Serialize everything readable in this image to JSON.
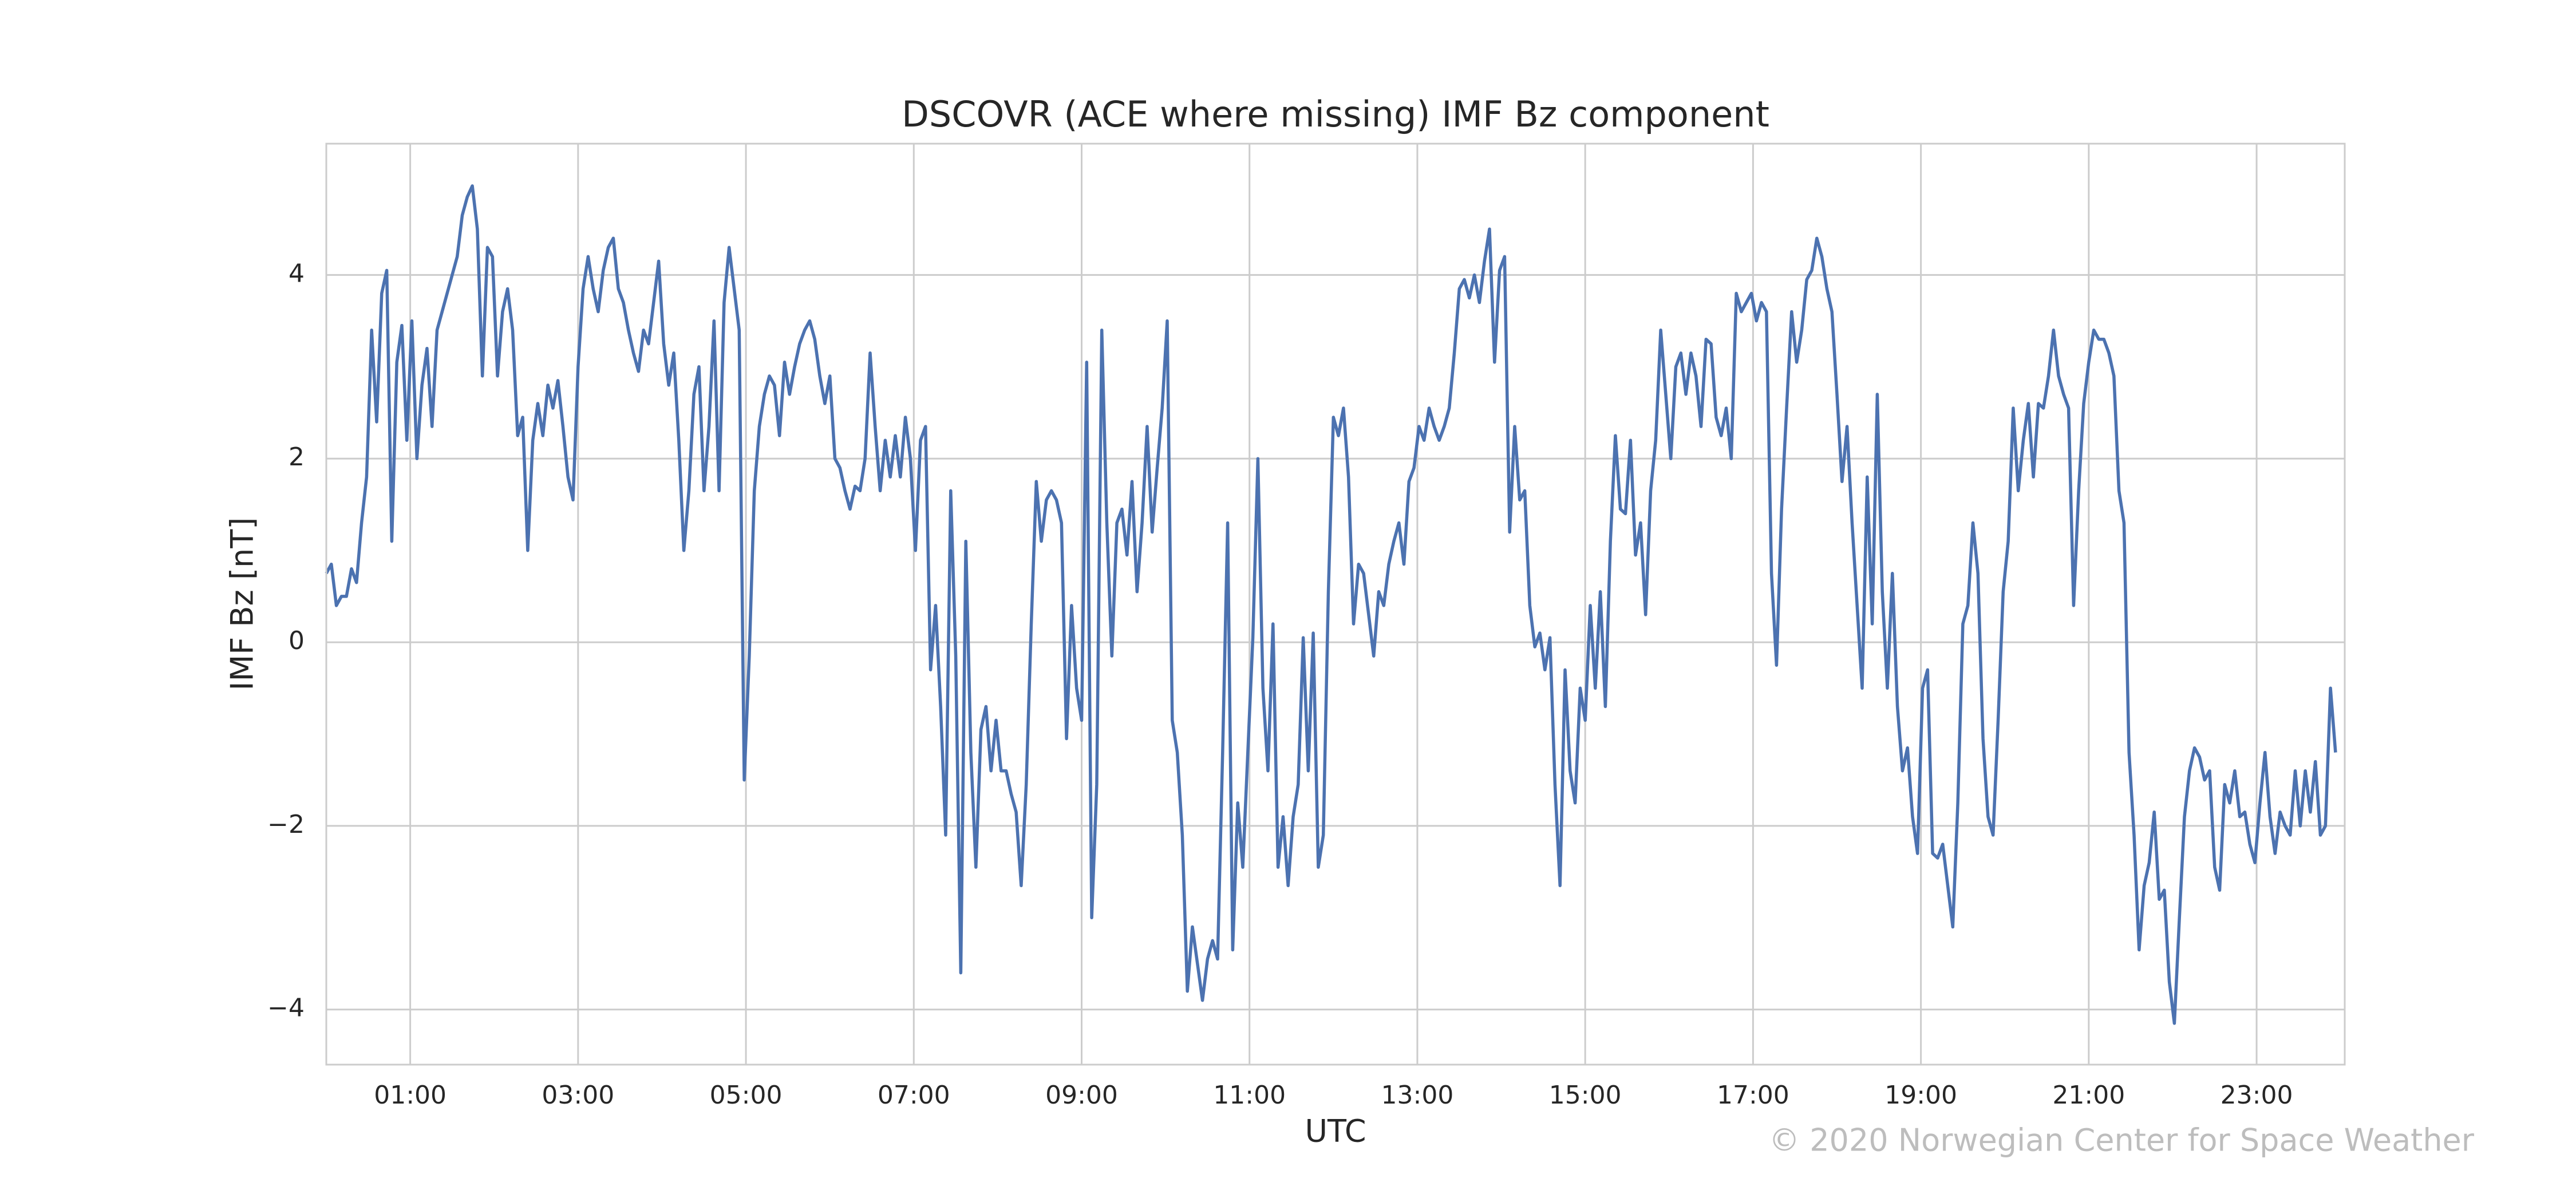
{
  "chart_data": {
    "type": "line",
    "title": "DSCOVR (ACE where missing) IMF Bz component",
    "xlabel": "UTC",
    "ylabel": "IMF Bz [nT]",
    "credit": "© 2020 Norwegian Center for Space Weather",
    "color": "#4c72b0",
    "grid": true,
    "xlim": [
      0,
      24.05
    ],
    "ylim": [
      -4.6,
      5.43
    ],
    "xticks": [
      {
        "value": 1,
        "label": "01:00"
      },
      {
        "value": 3,
        "label": "03:00"
      },
      {
        "value": 5,
        "label": "05:00"
      },
      {
        "value": 7,
        "label": "07:00"
      },
      {
        "value": 9,
        "label": "09:00"
      },
      {
        "value": 11,
        "label": "11:00"
      },
      {
        "value": 13,
        "label": "13:00"
      },
      {
        "value": 15,
        "label": "15:00"
      },
      {
        "value": 17,
        "label": "17:00"
      },
      {
        "value": 19,
        "label": "19:00"
      },
      {
        "value": 21,
        "label": "21:00"
      },
      {
        "value": 23,
        "label": "23:00"
      }
    ],
    "yticks": [
      {
        "value": -4,
        "label": "−4"
      },
      {
        "value": -2,
        "label": "−2"
      },
      0,
      2,
      4
    ],
    "x": [
      0,
      0.06,
      0.12,
      0.18,
      0.24,
      0.3,
      0.36,
      0.42,
      0.48,
      0.54,
      0.6,
      0.66,
      0.72,
      0.78,
      0.84,
      0.9,
      0.96,
      1.02,
      1.08,
      1.14,
      1.2,
      1.26,
      1.32,
      1.38,
      1.44,
      1.5,
      1.56,
      1.62,
      1.68,
      1.74,
      1.8,
      1.86,
      1.92,
      1.98,
      2.04,
      2.1,
      2.16,
      2.22,
      2.28,
      2.34,
      2.4,
      2.46,
      2.52,
      2.58,
      2.64,
      2.7,
      2.76,
      2.82,
      2.88,
      2.94,
      3.0,
      3.06,
      3.12,
      3.18,
      3.24,
      3.3,
      3.36,
      3.42,
      3.48,
      3.54,
      3.6,
      3.66,
      3.72,
      3.78,
      3.84,
      3.9,
      3.96,
      4.02,
      4.08,
      4.14,
      4.2,
      4.26,
      4.32,
      4.38,
      4.44,
      4.5,
      4.56,
      4.62,
      4.68,
      4.74,
      4.8,
      4.86,
      4.92,
      4.98,
      5.04,
      5.1,
      5.16,
      5.22,
      5.28,
      5.34,
      5.4,
      5.46,
      5.52,
      5.58,
      5.64,
      5.7,
      5.76,
      5.82,
      5.88,
      5.94,
      6.0,
      6.06,
      6.12,
      6.18,
      6.24,
      6.3,
      6.36,
      6.42,
      6.48,
      6.54,
      6.6,
      6.66,
      6.72,
      6.78,
      6.84,
      6.9,
      6.96,
      7.02,
      7.08,
      7.14,
      7.2,
      7.26,
      7.32,
      7.38,
      7.44,
      7.5,
      7.56,
      7.62,
      7.68,
      7.74,
      7.8,
      7.86,
      7.92,
      7.98,
      8.04,
      8.1,
      8.16,
      8.22,
      8.28,
      8.34,
      8.4,
      8.46,
      8.52,
      8.58,
      8.64,
      8.7,
      8.76,
      8.82,
      8.88,
      8.94,
      9.0,
      9.06,
      9.12,
      9.18,
      9.24,
      9.3,
      9.36,
      9.42,
      9.48,
      9.54,
      9.6,
      9.66,
      9.72,
      9.78,
      9.84,
      9.9,
      9.96,
      10.02,
      10.08,
      10.14,
      10.2,
      10.26,
      10.32,
      10.38,
      10.44,
      10.5,
      10.56,
      10.62,
      10.68,
      10.74,
      10.8,
      10.86,
      10.92,
      10.98,
      11.04,
      11.1,
      11.16,
      11.22,
      11.28,
      11.34,
      11.4,
      11.46,
      11.52,
      11.58,
      11.64,
      11.7,
      11.76,
      11.82,
      11.88,
      11.94,
      12.0,
      12.06,
      12.12,
      12.18,
      12.24,
      12.3,
      12.36,
      12.42,
      12.48,
      12.54,
      12.6,
      12.66,
      12.72,
      12.78,
      12.84,
      12.9,
      12.96,
      13.02,
      13.08,
      13.14,
      13.2,
      13.26,
      13.32,
      13.38,
      13.44,
      13.5,
      13.56,
      13.62,
      13.68,
      13.74,
      13.8,
      13.86,
      13.92,
      13.98,
      14.04,
      14.1,
      14.16,
      14.22,
      14.28,
      14.34,
      14.4,
      14.46,
      14.52,
      14.58,
      14.64,
      14.7,
      14.76,
      14.82,
      14.88,
      14.94,
      15.0,
      15.06,
      15.12,
      15.18,
      15.24,
      15.3,
      15.36,
      15.42,
      15.48,
      15.54,
      15.6,
      15.66,
      15.72,
      15.78,
      15.84,
      15.9,
      15.96,
      16.02,
      16.08,
      16.14,
      16.2,
      16.26,
      16.32,
      16.38,
      16.44,
      16.5,
      16.56,
      16.62,
      16.68,
      16.74,
      16.8,
      16.86,
      16.92,
      16.98,
      17.04,
      17.1,
      17.16,
      17.22,
      17.28,
      17.34,
      17.4,
      17.46,
      17.52,
      17.58,
      17.64,
      17.7,
      17.76,
      17.82,
      17.88,
      17.94,
      18.0,
      18.06,
      18.12,
      18.18,
      18.24,
      18.3,
      18.36,
      18.42,
      18.48,
      18.54,
      18.6,
      18.66,
      18.72,
      18.78,
      18.84,
      18.9,
      18.96,
      19.02,
      19.08,
      19.14,
      19.2,
      19.26,
      19.32,
      19.38,
      19.44,
      19.5,
      19.56,
      19.62,
      19.68,
      19.74,
      19.8,
      19.86,
      19.92,
      19.98,
      20.04,
      20.1,
      20.16,
      20.22,
      20.28,
      20.34,
      20.4,
      20.46,
      20.52,
      20.58,
      20.64,
      20.7,
      20.76,
      20.82,
      20.88,
      20.94,
      21.0,
      21.06,
      21.12,
      21.18,
      21.24,
      21.3,
      21.36,
      21.42,
      21.48,
      21.54,
      21.6,
      21.66,
      21.72,
      21.78,
      21.84,
      21.9,
      21.96,
      22.02,
      22.08,
      22.14,
      22.2,
      22.26,
      22.32,
      22.38,
      22.44,
      22.5,
      22.56,
      22.62,
      22.68,
      22.74,
      22.8,
      22.86,
      22.92,
      22.98,
      23.04,
      23.1,
      23.16,
      23.22,
      23.28,
      23.34,
      23.4,
      23.46,
      23.52,
      23.58,
      23.64,
      23.7,
      23.76,
      23.82,
      23.88,
      23.94
    ],
    "values": [
      0.75,
      0.85,
      0.4,
      0.5,
      0.5,
      0.8,
      0.65,
      1.3,
      1.8,
      3.4,
      2.4,
      3.8,
      4.05,
      1.1,
      3.05,
      3.45,
      2.2,
      3.5,
      2.0,
      2.8,
      3.2,
      2.35,
      3.4,
      3.6,
      3.8,
      4.0,
      4.2,
      4.65,
      4.85,
      4.97,
      4.5,
      2.9,
      4.3,
      4.2,
      2.9,
      3.6,
      3.85,
      3.4,
      2.25,
      2.45,
      1.0,
      2.2,
      2.6,
      2.25,
      2.8,
      2.55,
      2.85,
      2.35,
      1.8,
      1.55,
      3.0,
      3.85,
      4.2,
      3.85,
      3.6,
      4.05,
      4.3,
      4.4,
      3.85,
      3.7,
      3.4,
      3.15,
      2.95,
      3.4,
      3.25,
      3.7,
      4.15,
      3.25,
      2.8,
      3.15,
      2.2,
      1.0,
      1.65,
      2.7,
      3.0,
      1.65,
      2.35,
      3.5,
      1.65,
      3.7,
      4.3,
      3.85,
      3.4,
      -1.5,
      -0.15,
      1.65,
      2.35,
      2.7,
      2.9,
      2.8,
      2.25,
      3.05,
      2.7,
      3.0,
      3.25,
      3.4,
      3.5,
      3.3,
      2.9,
      2.6,
      2.9,
      2.0,
      1.9,
      1.65,
      1.45,
      1.7,
      1.65,
      2.0,
      3.15,
      2.35,
      1.65,
      2.2,
      1.8,
      2.25,
      1.8,
      2.45,
      2.0,
      1.0,
      2.2,
      2.35,
      -0.3,
      0.4,
      -0.7,
      -2.1,
      1.65,
      -0.15,
      -3.6,
      1.1,
      -1.2,
      -2.45,
      -0.95,
      -0.7,
      -1.4,
      -0.85,
      -1.4,
      -1.4,
      -1.65,
      -1.85,
      -2.65,
      -1.55,
      0.2,
      1.75,
      1.1,
      1.55,
      1.65,
      1.55,
      1.3,
      -1.05,
      0.4,
      -0.5,
      -0.85,
      3.05,
      -3.0,
      -1.55,
      3.4,
      1.3,
      -0.15,
      1.3,
      1.45,
      0.95,
      1.75,
      0.55,
      1.3,
      2.35,
      1.2,
      1.9,
      2.55,
      3.5,
      -0.85,
      -1.2,
      -2.1,
      -3.8,
      -3.1,
      -3.5,
      -3.9,
      -3.45,
      -3.25,
      -3.45,
      -1.2,
      1.3,
      -3.35,
      -1.75,
      -2.45,
      -1.2,
      0.05,
      2.0,
      -0.5,
      -1.4,
      0.2,
      -2.45,
      -1.9,
      -2.65,
      -1.9,
      -1.55,
      0.05,
      -1.4,
      0.1,
      -2.45,
      -2.1,
      0.55,
      2.45,
      2.25,
      2.55,
      1.8,
      0.2,
      0.85,
      0.75,
      0.3,
      -0.15,
      0.55,
      0.4,
      0.85,
      1.1,
      1.3,
      0.85,
      1.75,
      1.9,
      2.35,
      2.2,
      2.55,
      2.35,
      2.2,
      2.35,
      2.55,
      3.15,
      3.85,
      3.95,
      3.75,
      4.0,
      3.7,
      4.15,
      4.5,
      3.05,
      4.05,
      4.2,
      1.2,
      2.35,
      1.55,
      1.65,
      0.4,
      -0.05,
      0.1,
      -0.3,
      0.05,
      -1.55,
      -2.65,
      -0.3,
      -1.4,
      -1.75,
      -0.5,
      -0.85,
      0.4,
      -0.5,
      0.55,
      -0.7,
      1.1,
      2.25,
      1.45,
      1.4,
      2.2,
      0.95,
      1.3,
      0.3,
      1.65,
      2.2,
      3.4,
      2.7,
      2.0,
      3.0,
      3.15,
      2.7,
      3.15,
      2.9,
      2.35,
      3.3,
      3.25,
      2.45,
      2.25,
      2.55,
      2.0,
      3.8,
      3.6,
      3.7,
      3.8,
      3.5,
      3.7,
      3.6,
      0.75,
      -0.25,
      1.45,
      2.55,
      3.6,
      3.05,
      3.4,
      3.95,
      4.05,
      4.4,
      4.2,
      3.85,
      3.6,
      2.7,
      1.75,
      2.35,
      1.3,
      0.4,
      -0.5,
      1.8,
      0.2,
      2.7,
      0.55,
      -0.5,
      0.75,
      -0.7,
      -1.4,
      -1.15,
      -1.9,
      -2.3,
      -0.5,
      -0.3,
      -2.3,
      -2.35,
      -2.2,
      -2.65,
      -3.1,
      -1.75,
      0.2,
      0.4,
      1.3,
      0.75,
      -1.05,
      -1.9,
      -2.1,
      -0.85,
      0.55,
      1.1,
      2.55,
      1.65,
      2.2,
      2.6,
      1.8,
      2.6,
      2.55,
      2.9,
      3.4,
      2.9,
      2.7,
      2.55,
      0.4,
      1.65,
      2.6,
      3.05,
      3.4,
      3.3,
      3.3,
      3.15,
      2.9,
      1.65,
      1.3,
      -1.2,
      -2.1,
      -3.35,
      -2.65,
      -2.4,
      -1.85,
      -2.8,
      -2.7,
      -3.7,
      -4.15,
      -3.0,
      -1.9,
      -1.4,
      -1.15,
      -1.25,
      -1.5,
      -1.4,
      -2.45,
      -2.7,
      -1.55,
      -1.75,
      -1.4,
      -1.9,
      -1.85,
      -2.2,
      -2.4,
      -1.75,
      -1.2,
      -1.9,
      -2.3,
      -1.85,
      -2.0,
      -2.1,
      -1.4,
      -2.0,
      -1.4,
      -1.85,
      -1.3,
      -2.1,
      -2.0,
      -0.5,
      -1.2
    ]
  }
}
